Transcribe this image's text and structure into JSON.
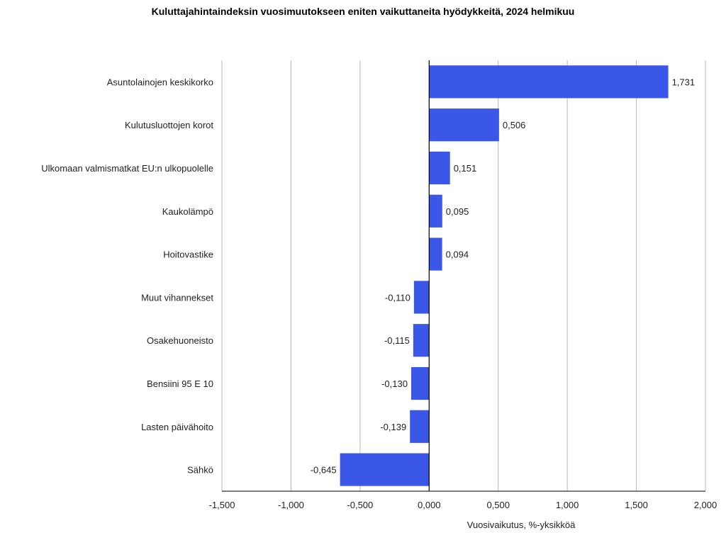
{
  "chart_data": {
    "type": "bar",
    "orientation": "horizontal",
    "title": "Kuluttajahintaindeksin vuosimuutokseen eniten vaikuttaneita hyödykkeitä, 2024 helmikuu",
    "xlabel": "Vuosivaikutus, %-yksikköä",
    "ylabel": "",
    "xlim": [
      -1.5,
      2.0
    ],
    "xticks": [
      -1.5,
      -1.0,
      -0.5,
      0.0,
      0.5,
      1.0,
      1.5,
      2.0
    ],
    "xtick_labels": [
      "-1,500",
      "-1,000",
      "-0,500",
      "0,000",
      "0,500",
      "1,000",
      "1,500",
      "2,000"
    ],
    "grid": true,
    "bar_color": "#3b57e8",
    "categories": [
      "Asuntolainojen keskikorko",
      "Kulutusluottojen korot",
      "Ulkomaan valmismatkat EU:n ulkopuolelle",
      "Kaukolämpö",
      "Hoitovastike",
      "Muut vihannekset",
      "Osakehuoneisto",
      "Bensiini 95 E 10",
      "Lasten päivähoito",
      "Sähkö"
    ],
    "values": [
      1.731,
      0.506,
      0.151,
      0.095,
      0.094,
      -0.11,
      -0.115,
      -0.13,
      -0.139,
      -0.645
    ],
    "value_labels": [
      "1,731",
      "0,506",
      "0,151",
      "0,095",
      "0,094",
      "-0,110",
      "-0,115",
      "-0,130",
      "-0,139",
      "-0,645"
    ]
  }
}
